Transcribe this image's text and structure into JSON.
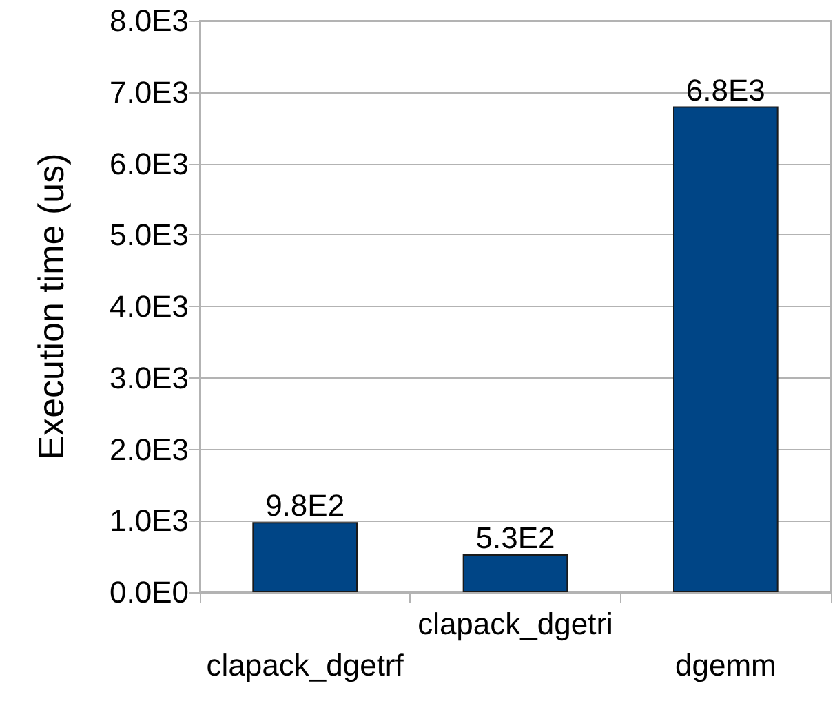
{
  "chart_data": {
    "type": "bar",
    "ylabel": "Execution time (us)",
    "categories": [
      "clapack_dgetrf",
      "clapack_dgetri",
      "dgemm"
    ],
    "values": [
      980,
      530,
      6800
    ],
    "color": "#004586",
    "value_labels": [
      "9.8E2",
      "5.3E2",
      "6.8E3"
    ],
    "ylim": [
      0,
      8000
    ],
    "yticks": [
      {
        "value": 0,
        "label": "0.0E0"
      },
      {
        "value": 1000,
        "label": "1.0E3"
      },
      {
        "value": 2000,
        "label": "2.0E3"
      },
      {
        "value": 3000,
        "label": "3.0E3"
      },
      {
        "value": 4000,
        "label": "4.0E3"
      },
      {
        "value": 5000,
        "label": "5.0E3"
      },
      {
        "value": 6000,
        "label": "6.0E3"
      },
      {
        "value": 7000,
        "label": "7.0E3"
      },
      {
        "value": 8000,
        "label": "8.0E3"
      }
    ],
    "grid": "y"
  }
}
